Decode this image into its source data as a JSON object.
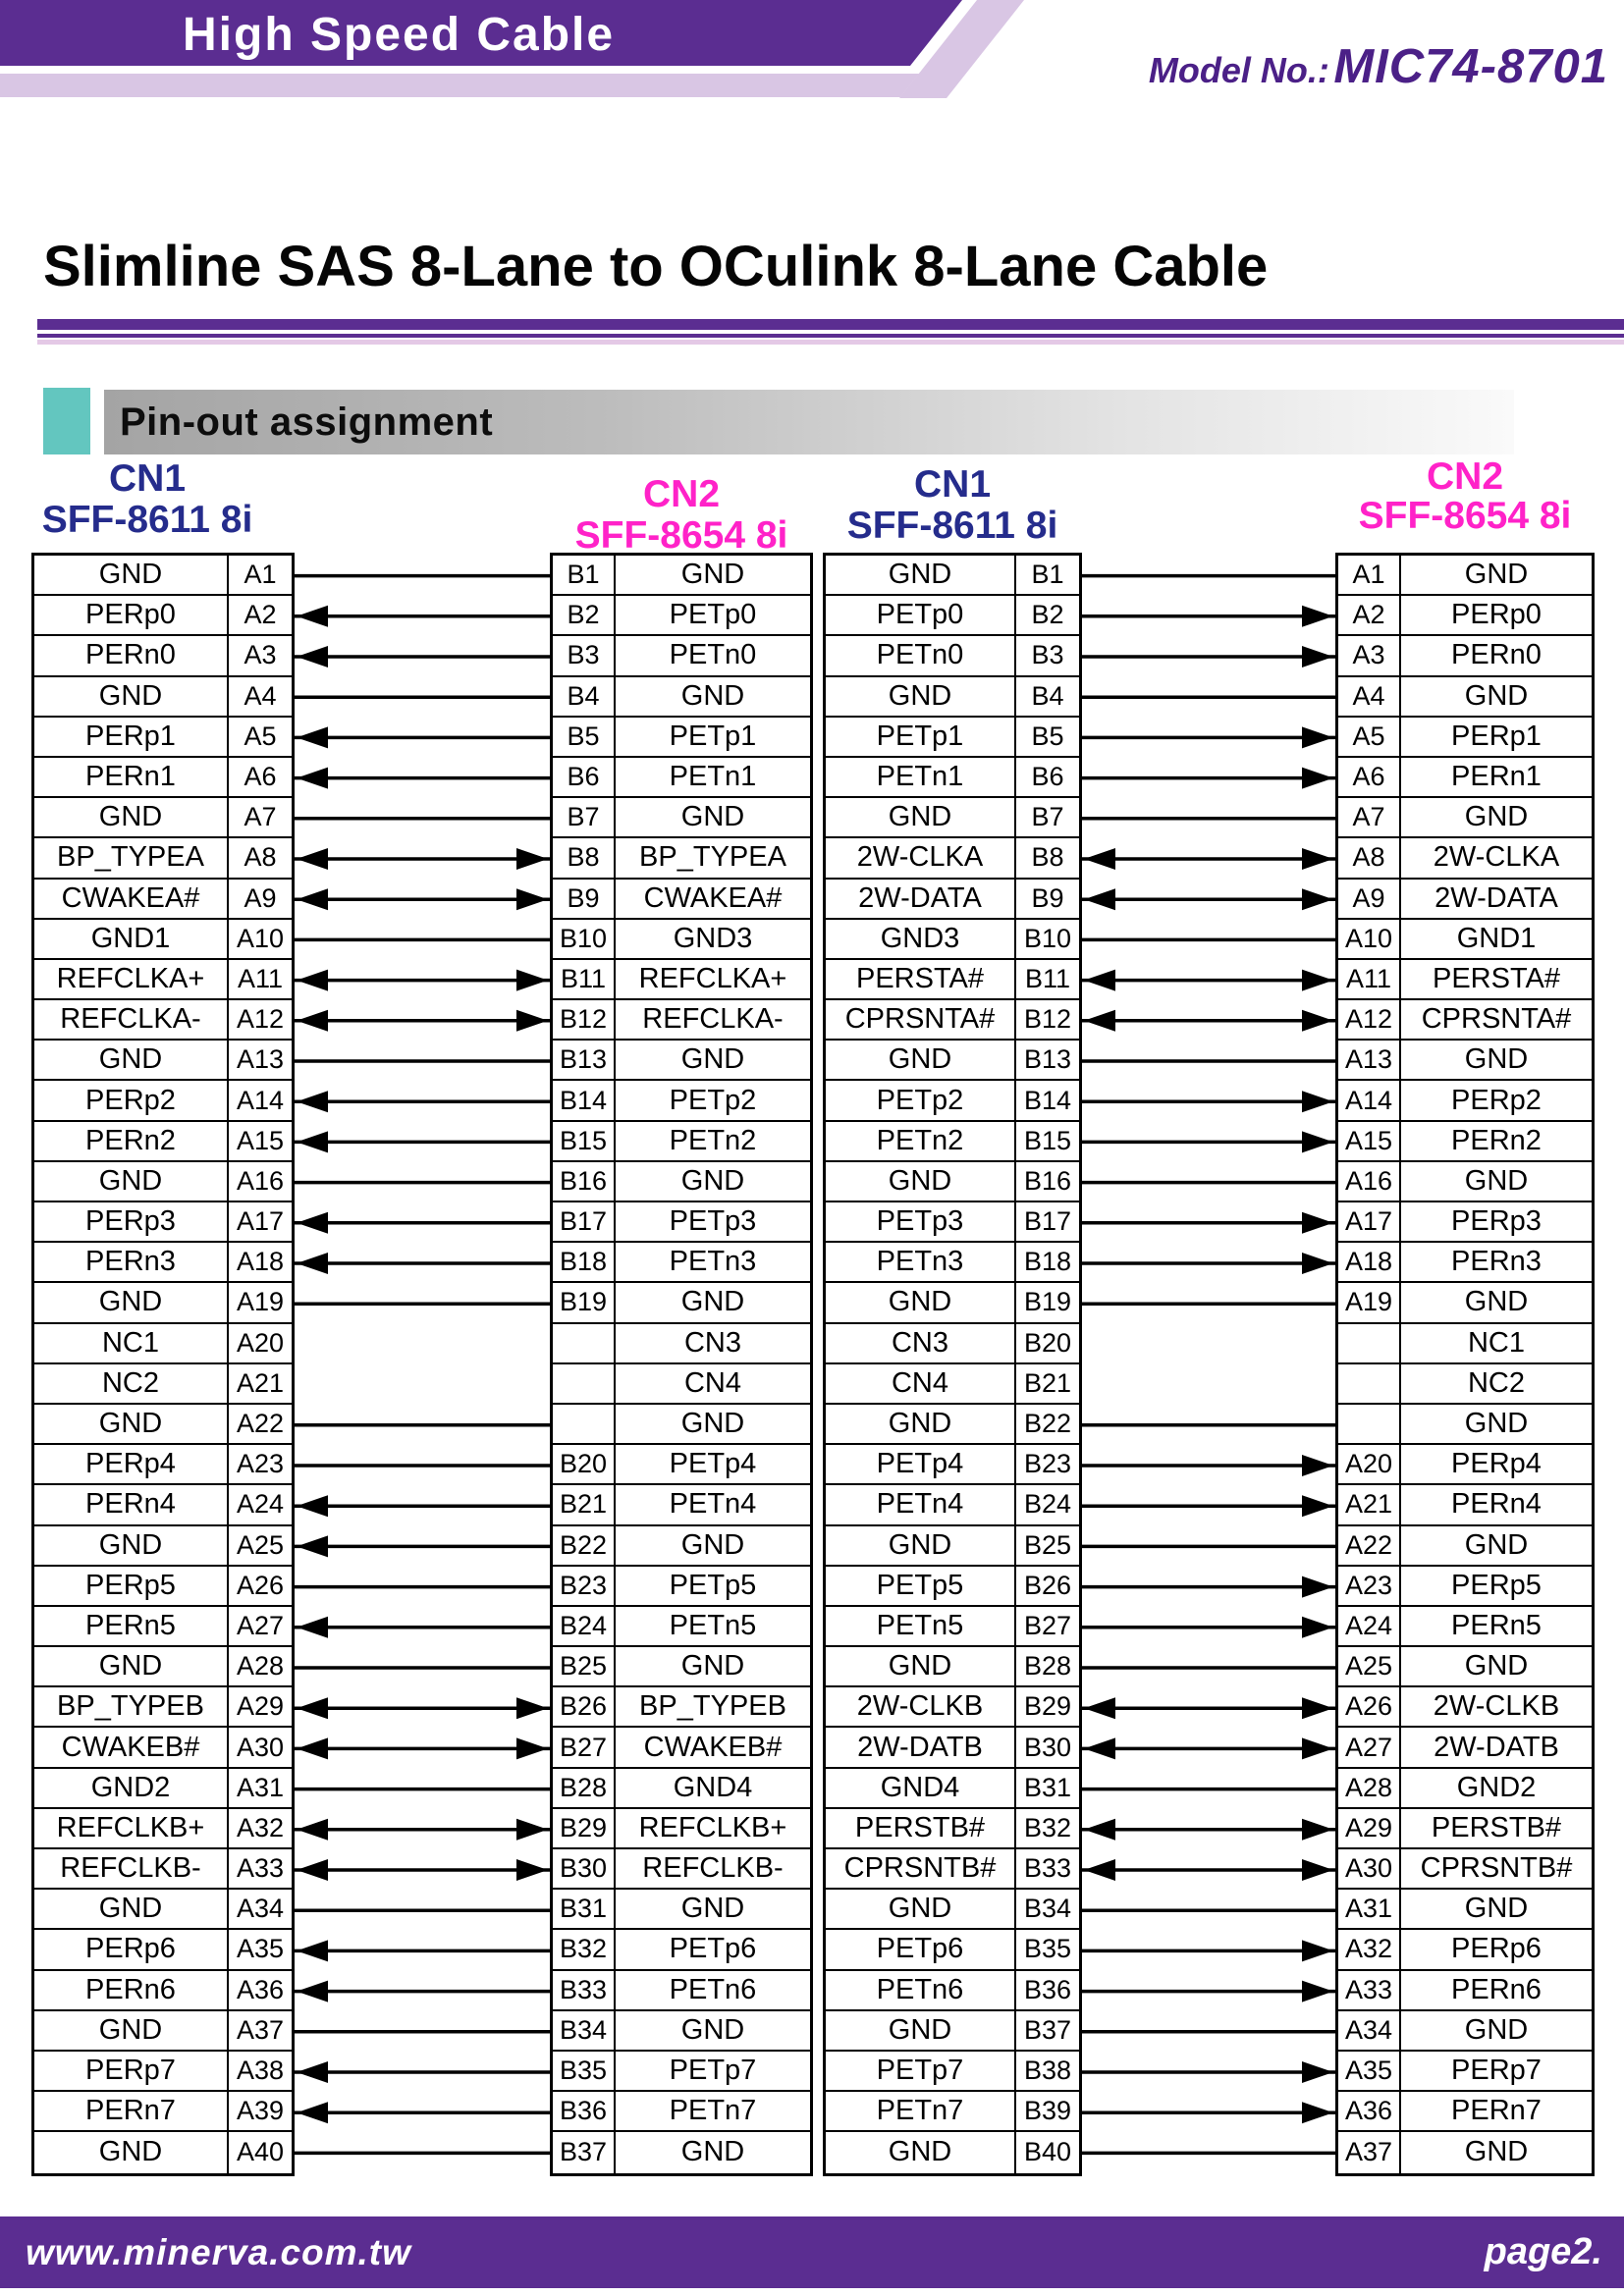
{
  "header": {
    "banner_title": "High Speed Cable",
    "model_label": "Model No.:",
    "model_number": "MIC74-8701"
  },
  "page_title": "Slimline SAS 8-Lane to OCulink 8-Lane Cable",
  "section": {
    "title": "Pin-out assignment"
  },
  "colors": {
    "brand_purple": "#5B2D91",
    "lavender": "#D9C6E4",
    "pink_rule": "#E4C9E6",
    "teal": "#63C6BF",
    "cn1_blue": "#252C8C",
    "cn2_magenta": "#FF22C8",
    "line_black": "#000000",
    "model_purple": "#4B2087"
  },
  "diagram": {
    "left_pair": {
      "cn1_label": "CN1",
      "cn1_sub": "SFF-8611 8i",
      "cn2_label": "CN2",
      "cn2_sub": "SFF-8654 8i",
      "rows": [
        {
          "cn1_signal": "GND",
          "cn1_pin": "A1",
          "link": "plain",
          "cn2_pin": "B1",
          "cn2_signal": "GND"
        },
        {
          "cn1_signal": "PERp0",
          "cn1_pin": "A2",
          "link": "left",
          "cn2_pin": "B2",
          "cn2_signal": "PETp0"
        },
        {
          "cn1_signal": "PERn0",
          "cn1_pin": "A3",
          "link": "left",
          "cn2_pin": "B3",
          "cn2_signal": "PETn0"
        },
        {
          "cn1_signal": "GND",
          "cn1_pin": "A4",
          "link": "plain",
          "cn2_pin": "B4",
          "cn2_signal": "GND"
        },
        {
          "cn1_signal": "PERp1",
          "cn1_pin": "A5",
          "link": "left",
          "cn2_pin": "B5",
          "cn2_signal": "PETp1"
        },
        {
          "cn1_signal": "PERn1",
          "cn1_pin": "A6",
          "link": "left",
          "cn2_pin": "B6",
          "cn2_signal": "PETn1"
        },
        {
          "cn1_signal": "GND",
          "cn1_pin": "A7",
          "link": "plain",
          "cn2_pin": "B7",
          "cn2_signal": "GND"
        },
        {
          "cn1_signal": "BP_TYPEA",
          "cn1_pin": "A8",
          "link": "both",
          "cn2_pin": "B8",
          "cn2_signal": "BP_TYPEA"
        },
        {
          "cn1_signal": "CWAKEA#",
          "cn1_pin": "A9",
          "link": "both",
          "cn2_pin": "B9",
          "cn2_signal": "CWAKEA#"
        },
        {
          "cn1_signal": "GND1",
          "cn1_pin": "A10",
          "link": "plain",
          "cn2_pin": "B10",
          "cn2_signal": "GND3"
        },
        {
          "cn1_signal": "REFCLKA+",
          "cn1_pin": "A11",
          "link": "both",
          "cn2_pin": "B11",
          "cn2_signal": "REFCLKA+"
        },
        {
          "cn1_signal": "REFCLKA-",
          "cn1_pin": "A12",
          "link": "both",
          "cn2_pin": "B12",
          "cn2_signal": "REFCLKA-"
        },
        {
          "cn1_signal": "GND",
          "cn1_pin": "A13",
          "link": "plain",
          "cn2_pin": "B13",
          "cn2_signal": "GND"
        },
        {
          "cn1_signal": "PERp2",
          "cn1_pin": "A14",
          "link": "left",
          "cn2_pin": "B14",
          "cn2_signal": "PETp2"
        },
        {
          "cn1_signal": "PERn2",
          "cn1_pin": "A15",
          "link": "left",
          "cn2_pin": "B15",
          "cn2_signal": "PETn2"
        },
        {
          "cn1_signal": "GND",
          "cn1_pin": "A16",
          "link": "plain",
          "cn2_pin": "B16",
          "cn2_signal": "GND"
        },
        {
          "cn1_signal": "PERp3",
          "cn1_pin": "A17",
          "link": "left",
          "cn2_pin": "B17",
          "cn2_signal": "PETp3"
        },
        {
          "cn1_signal": "PERn3",
          "cn1_pin": "A18",
          "link": "left",
          "cn2_pin": "B18",
          "cn2_signal": "PETn3"
        },
        {
          "cn1_signal": "GND",
          "cn1_pin": "A19",
          "link": "plain",
          "cn2_pin": "B19",
          "cn2_signal": "GND"
        },
        {
          "cn1_signal": "NC1",
          "cn1_pin": "A20",
          "link": "none",
          "cn2_pin": "",
          "cn2_signal": "CN3"
        },
        {
          "cn1_signal": "NC2",
          "cn1_pin": "A21",
          "link": "none",
          "cn2_pin": "",
          "cn2_signal": "CN4"
        },
        {
          "cn1_signal": "GND",
          "cn1_pin": "A22",
          "link": "plain",
          "cn2_pin": "",
          "cn2_signal": "GND"
        },
        {
          "cn1_signal": "PERp4",
          "cn1_pin": "A23",
          "link": "plain",
          "cn2_pin": "B20",
          "cn2_signal": "PETp4"
        },
        {
          "cn1_signal": "PERn4",
          "cn1_pin": "A24",
          "link": "left",
          "cn2_pin": "B21",
          "cn2_signal": "PETn4"
        },
        {
          "cn1_signal": "GND",
          "cn1_pin": "A25",
          "link": "left",
          "cn2_pin": "B22",
          "cn2_signal": "GND"
        },
        {
          "cn1_signal": "PERp5",
          "cn1_pin": "A26",
          "link": "plain",
          "cn2_pin": "B23",
          "cn2_signal": "PETp5"
        },
        {
          "cn1_signal": "PERn5",
          "cn1_pin": "A27",
          "link": "left",
          "cn2_pin": "B24",
          "cn2_signal": "PETn5"
        },
        {
          "cn1_signal": "GND",
          "cn1_pin": "A28",
          "link": "plain",
          "cn2_pin": "B25",
          "cn2_signal": "GND"
        },
        {
          "cn1_signal": "BP_TYPEB",
          "cn1_pin": "A29",
          "link": "both",
          "cn2_pin": "B26",
          "cn2_signal": "BP_TYPEB"
        },
        {
          "cn1_signal": "CWAKEB#",
          "cn1_pin": "A30",
          "link": "both",
          "cn2_pin": "B27",
          "cn2_signal": "CWAKEB#"
        },
        {
          "cn1_signal": "GND2",
          "cn1_pin": "A31",
          "link": "plain",
          "cn2_pin": "B28",
          "cn2_signal": "GND4"
        },
        {
          "cn1_signal": "REFCLKB+",
          "cn1_pin": "A32",
          "link": "both",
          "cn2_pin": "B29",
          "cn2_signal": "REFCLKB+"
        },
        {
          "cn1_signal": "REFCLKB-",
          "cn1_pin": "A33",
          "link": "both",
          "cn2_pin": "B30",
          "cn2_signal": "REFCLKB-"
        },
        {
          "cn1_signal": "GND",
          "cn1_pin": "A34",
          "link": "plain",
          "cn2_pin": "B31",
          "cn2_signal": "GND"
        },
        {
          "cn1_signal": "PERp6",
          "cn1_pin": "A35",
          "link": "left",
          "cn2_pin": "B32",
          "cn2_signal": "PETp6"
        },
        {
          "cn1_signal": "PERn6",
          "cn1_pin": "A36",
          "link": "left",
          "cn2_pin": "B33",
          "cn2_signal": "PETn6"
        },
        {
          "cn1_signal": "GND",
          "cn1_pin": "A37",
          "link": "plain",
          "cn2_pin": "B34",
          "cn2_signal": "GND"
        },
        {
          "cn1_signal": "PERp7",
          "cn1_pin": "A38",
          "link": "left",
          "cn2_pin": "B35",
          "cn2_signal": "PETp7"
        },
        {
          "cn1_signal": "PERn7",
          "cn1_pin": "A39",
          "link": "left",
          "cn2_pin": "B36",
          "cn2_signal": "PETn7"
        },
        {
          "cn1_signal": "GND",
          "cn1_pin": "A40",
          "link": "plain",
          "cn2_pin": "B37",
          "cn2_signal": "GND"
        }
      ]
    },
    "right_pair": {
      "cn1_label": "CN1",
      "cn1_sub": "SFF-8611 8i",
      "cn2_label": "CN2",
      "cn2_sub": "SFF-8654 8i",
      "rows": [
        {
          "cn1_signal": "GND",
          "cn1_pin": "B1",
          "link": "plain",
          "cn2_pin": "A1",
          "cn2_signal": "GND"
        },
        {
          "cn1_signal": "PETp0",
          "cn1_pin": "B2",
          "link": "right",
          "cn2_pin": "A2",
          "cn2_signal": "PERp0"
        },
        {
          "cn1_signal": "PETn0",
          "cn1_pin": "B3",
          "link": "right",
          "cn2_pin": "A3",
          "cn2_signal": "PERn0"
        },
        {
          "cn1_signal": "GND",
          "cn1_pin": "B4",
          "link": "plain",
          "cn2_pin": "A4",
          "cn2_signal": "GND"
        },
        {
          "cn1_signal": "PETp1",
          "cn1_pin": "B5",
          "link": "right",
          "cn2_pin": "A5",
          "cn2_signal": "PERp1"
        },
        {
          "cn1_signal": "PETn1",
          "cn1_pin": "B6",
          "link": "right",
          "cn2_pin": "A6",
          "cn2_signal": "PERn1"
        },
        {
          "cn1_signal": "GND",
          "cn1_pin": "B7",
          "link": "plain",
          "cn2_pin": "A7",
          "cn2_signal": "GND"
        },
        {
          "cn1_signal": "2W-CLKA",
          "cn1_pin": "B8",
          "link": "both",
          "cn2_pin": "A8",
          "cn2_signal": "2W-CLKA"
        },
        {
          "cn1_signal": "2W-DATA",
          "cn1_pin": "B9",
          "link": "both",
          "cn2_pin": "A9",
          "cn2_signal": "2W-DATA"
        },
        {
          "cn1_signal": "GND3",
          "cn1_pin": "B10",
          "link": "plain",
          "cn2_pin": "A10",
          "cn2_signal": "GND1"
        },
        {
          "cn1_signal": "PERSTA#",
          "cn1_pin": "B11",
          "link": "both",
          "cn2_pin": "A11",
          "cn2_signal": "PERSTA#"
        },
        {
          "cn1_signal": "CPRSNTA#",
          "cn1_pin": "B12",
          "link": "both",
          "cn2_pin": "A12",
          "cn2_signal": "CPRSNTA#"
        },
        {
          "cn1_signal": "GND",
          "cn1_pin": "B13",
          "link": "plain",
          "cn2_pin": "A13",
          "cn2_signal": "GND"
        },
        {
          "cn1_signal": "PETp2",
          "cn1_pin": "B14",
          "link": "right",
          "cn2_pin": "A14",
          "cn2_signal": "PERp2"
        },
        {
          "cn1_signal": "PETn2",
          "cn1_pin": "B15",
          "link": "right",
          "cn2_pin": "A15",
          "cn2_signal": "PERn2"
        },
        {
          "cn1_signal": "GND",
          "cn1_pin": "B16",
          "link": "plain",
          "cn2_pin": "A16",
          "cn2_signal": "GND"
        },
        {
          "cn1_signal": "PETp3",
          "cn1_pin": "B17",
          "link": "right",
          "cn2_pin": "A17",
          "cn2_signal": "PERp3"
        },
        {
          "cn1_signal": "PETn3",
          "cn1_pin": "B18",
          "link": "right",
          "cn2_pin": "A18",
          "cn2_signal": "PERn3"
        },
        {
          "cn1_signal": "GND",
          "cn1_pin": "B19",
          "link": "plain",
          "cn2_pin": "A19",
          "cn2_signal": "GND"
        },
        {
          "cn1_signal": "CN3",
          "cn1_pin": "B20",
          "link": "none",
          "cn2_pin": "",
          "cn2_signal": "NC1"
        },
        {
          "cn1_signal": "CN4",
          "cn1_pin": "B21",
          "link": "none",
          "cn2_pin": "",
          "cn2_signal": "NC2"
        },
        {
          "cn1_signal": "GND",
          "cn1_pin": "B22",
          "link": "plain",
          "cn2_pin": "",
          "cn2_signal": "GND"
        },
        {
          "cn1_signal": "PETp4",
          "cn1_pin": "B23",
          "link": "right",
          "cn2_pin": "A20",
          "cn2_signal": "PERp4"
        },
        {
          "cn1_signal": "PETn4",
          "cn1_pin": "B24",
          "link": "right",
          "cn2_pin": "A21",
          "cn2_signal": "PERn4"
        },
        {
          "cn1_signal": "GND",
          "cn1_pin": "B25",
          "link": "plain",
          "cn2_pin": "A22",
          "cn2_signal": "GND"
        },
        {
          "cn1_signal": "PETp5",
          "cn1_pin": "B26",
          "link": "right",
          "cn2_pin": "A23",
          "cn2_signal": "PERp5"
        },
        {
          "cn1_signal": "PETn5",
          "cn1_pin": "B27",
          "link": "right",
          "cn2_pin": "A24",
          "cn2_signal": "PERn5"
        },
        {
          "cn1_signal": "GND",
          "cn1_pin": "B28",
          "link": "plain",
          "cn2_pin": "A25",
          "cn2_signal": "GND"
        },
        {
          "cn1_signal": "2W-CLKB",
          "cn1_pin": "B29",
          "link": "both",
          "cn2_pin": "A26",
          "cn2_signal": "2W-CLKB"
        },
        {
          "cn1_signal": "2W-DATB",
          "cn1_pin": "B30",
          "link": "both",
          "cn2_pin": "A27",
          "cn2_signal": "2W-DATB"
        },
        {
          "cn1_signal": "GND4",
          "cn1_pin": "B31",
          "link": "plain",
          "cn2_pin": "A28",
          "cn2_signal": "GND2"
        },
        {
          "cn1_signal": "PERSTB#",
          "cn1_pin": "B32",
          "link": "both",
          "cn2_pin": "A29",
          "cn2_signal": "PERSTB#"
        },
        {
          "cn1_signal": "CPRSNTB#",
          "cn1_pin": "B33",
          "link": "both",
          "cn2_pin": "A30",
          "cn2_signal": "CPRSNTB#"
        },
        {
          "cn1_signal": "GND",
          "cn1_pin": "B34",
          "link": "plain",
          "cn2_pin": "A31",
          "cn2_signal": "GND"
        },
        {
          "cn1_signal": "PETp6",
          "cn1_pin": "B35",
          "link": "right",
          "cn2_pin": "A32",
          "cn2_signal": "PERp6"
        },
        {
          "cn1_signal": "PETn6",
          "cn1_pin": "B36",
          "link": "right",
          "cn2_pin": "A33",
          "cn2_signal": "PERn6"
        },
        {
          "cn1_signal": "GND",
          "cn1_pin": "B37",
          "link": "plain",
          "cn2_pin": "A34",
          "cn2_signal": "GND"
        },
        {
          "cn1_signal": "PETp7",
          "cn1_pin": "B38",
          "link": "right",
          "cn2_pin": "A35",
          "cn2_signal": "PERp7"
        },
        {
          "cn1_signal": "PETn7",
          "cn1_pin": "B39",
          "link": "right",
          "cn2_pin": "A36",
          "cn2_signal": "PERn7"
        },
        {
          "cn1_signal": "GND",
          "cn1_pin": "B40",
          "link": "plain",
          "cn2_pin": "A37",
          "cn2_signal": "GND"
        }
      ]
    }
  },
  "footer": {
    "website": "www.minerva.com.tw",
    "page": "page2."
  }
}
